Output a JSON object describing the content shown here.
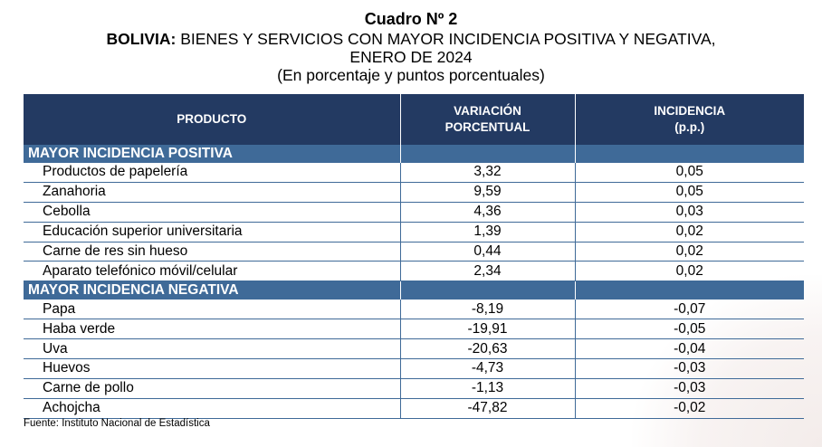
{
  "title": {
    "number": "Cuadro Nº 2",
    "country": "BOLIVIA:",
    "line1": "BIENES Y SERVICIOS CON MAYOR INCIDENCIA POSITIVA Y NEGATIVA,",
    "line2": "ENERO DE 2024",
    "units": "(En porcentaje y puntos porcentuales)"
  },
  "table": {
    "headers": {
      "product": "PRODUCTO",
      "variation_1": "VARIACIÓN",
      "variation_2": "PORCENTUAL",
      "incidence_1": "INCIDENCIA",
      "incidence_2": "(p.p.)"
    },
    "positive": {
      "label": "MAYOR INCIDENCIA POSITIVA",
      "rows": [
        {
          "product": "Productos de papelería",
          "variation": "3,32",
          "incidence": "0,05"
        },
        {
          "product": "Zanahoria",
          "variation": "9,59",
          "incidence": "0,05"
        },
        {
          "product": "Cebolla",
          "variation": "4,36",
          "incidence": "0,03"
        },
        {
          "product": "Educación superior universitaria",
          "variation": "1,39",
          "incidence": "0,02"
        },
        {
          "product": "Carne de res sin hueso",
          "variation": "0,44",
          "incidence": "0,02"
        },
        {
          "product": "Aparato telefónico móvil/celular",
          "variation": "2,34",
          "incidence": "0,02"
        }
      ]
    },
    "negative": {
      "label": "MAYOR INCIDENCIA NEGATIVA",
      "rows": [
        {
          "product": "Papa",
          "variation": "-8,19",
          "incidence": "-0,07"
        },
        {
          "product": "Haba verde",
          "variation": "-19,91",
          "incidence": "-0,05"
        },
        {
          "product": "Uva",
          "variation": "-20,63",
          "incidence": "-0,04"
        },
        {
          "product": "Huevos",
          "variation": "-4,73",
          "incidence": "-0,03"
        },
        {
          "product": "Carne de pollo",
          "variation": "-1,13",
          "incidence": "-0,03"
        },
        {
          "product": "Achojcha",
          "variation": "-47,82",
          "incidence": "-0,02"
        }
      ]
    }
  },
  "source": "Fuente: Instituto Nacional de Estadística",
  "colors": {
    "header": "#233a62",
    "section": "#3f6a98"
  }
}
